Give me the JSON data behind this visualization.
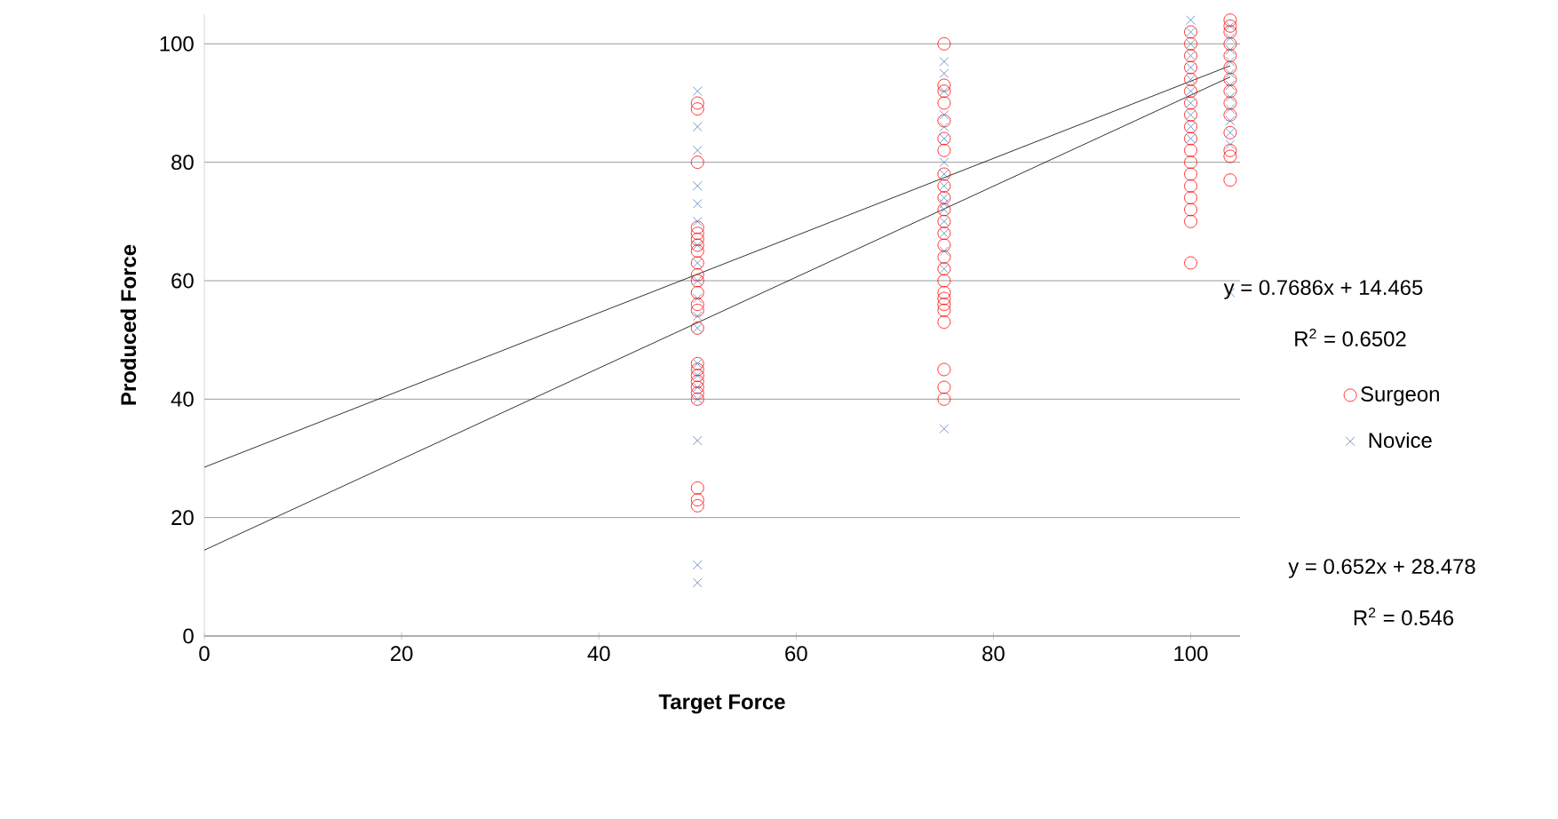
{
  "chart_data": {
    "type": "scatter",
    "xlabel": "Target Force",
    "ylabel": "Produced Force",
    "xlim": [
      0,
      105
    ],
    "ylim": [
      0,
      105
    ],
    "xticks": [
      0,
      20,
      40,
      60,
      80,
      100
    ],
    "yticks": [
      0,
      20,
      40,
      60,
      80,
      100
    ],
    "grid": "y",
    "legend": "right",
    "series": [
      {
        "name": "Surgeon",
        "color": "#ff0000",
        "marker": "circle",
        "x": [
          50,
          50,
          50,
          50,
          50,
          50,
          50,
          50,
          50,
          50,
          50,
          50,
          50,
          50,
          50,
          50,
          50,
          50,
          50,
          50,
          50,
          50,
          50,
          50,
          50,
          75,
          75,
          75,
          75,
          75,
          75,
          75,
          75,
          75,
          75,
          75,
          75,
          75,
          75,
          75,
          75,
          75,
          75,
          75,
          75,
          75,
          75,
          75,
          75,
          75,
          100,
          100,
          100,
          100,
          100,
          100,
          100,
          100,
          100,
          100,
          100,
          100,
          100,
          100,
          100,
          100,
          100,
          100,
          104,
          104,
          104,
          104,
          104,
          104,
          104,
          104,
          104,
          104,
          104,
          104,
          104,
          104
        ],
        "values": [
          90,
          89,
          80,
          69,
          68,
          67,
          66,
          65,
          63,
          61,
          60,
          58,
          56,
          55,
          52,
          46,
          45,
          44,
          43,
          42,
          41,
          40,
          25,
          23,
          22,
          100,
          93,
          92,
          90,
          87,
          84,
          82,
          78,
          76,
          74,
          72,
          70,
          68,
          66,
          64,
          62,
          60,
          58,
          57,
          56,
          55,
          53,
          45,
          42,
          40,
          102,
          100,
          98,
          96,
          94,
          92,
          90,
          88,
          86,
          84,
          82,
          80,
          78,
          76,
          74,
          72,
          70,
          63,
          104,
          103,
          102,
          100,
          98,
          96,
          94,
          92,
          90,
          88,
          85,
          82,
          81,
          77
        ]
      },
      {
        "name": "Novice",
        "color": "#4f81bd",
        "marker": "cross",
        "x": [
          50,
          50,
          50,
          50,
          50,
          50,
          50,
          50,
          50,
          50,
          50,
          50,
          50,
          50,
          50,
          50,
          50,
          50,
          50,
          75,
          75,
          75,
          75,
          75,
          75,
          75,
          75,
          75,
          75,
          75,
          75,
          75,
          75,
          75,
          75,
          75,
          100,
          100,
          100,
          100,
          100,
          100,
          100,
          100,
          100,
          100,
          100,
          104,
          104,
          104,
          104,
          104,
          104,
          104,
          104,
          104,
          104,
          104,
          104
        ],
        "values": [
          92,
          86,
          82,
          76,
          73,
          70,
          66,
          63,
          60,
          57,
          54,
          52,
          46,
          44,
          42,
          40,
          33,
          12,
          9,
          97,
          95,
          92,
          88,
          86,
          84,
          80,
          78,
          76,
          74,
          73,
          72,
          70,
          68,
          65,
          62,
          35,
          104,
          102,
          100,
          98,
          96,
          94,
          92,
          90,
          88,
          86,
          84,
          103,
          101,
          99,
          97,
          95,
          93,
          91,
          89,
          87,
          85,
          83,
          58
        ]
      },
      {
        "type": "line",
        "color": "#000000",
        "x": [
          0,
          104
        ],
        "values": [
          14.5,
          94.4
        ]
      },
      {
        "type": "line",
        "color": "#000000",
        "x": [
          0,
          104
        ],
        "values": [
          28.5,
          96.3
        ]
      }
    ],
    "annotations": [
      "y = 0.7686x + 14.465",
      "R$^{2}$ = 0.6502",
      "y = 0.652x + 28.478",
      "R$^{2}$ = 0.546"
    ]
  }
}
